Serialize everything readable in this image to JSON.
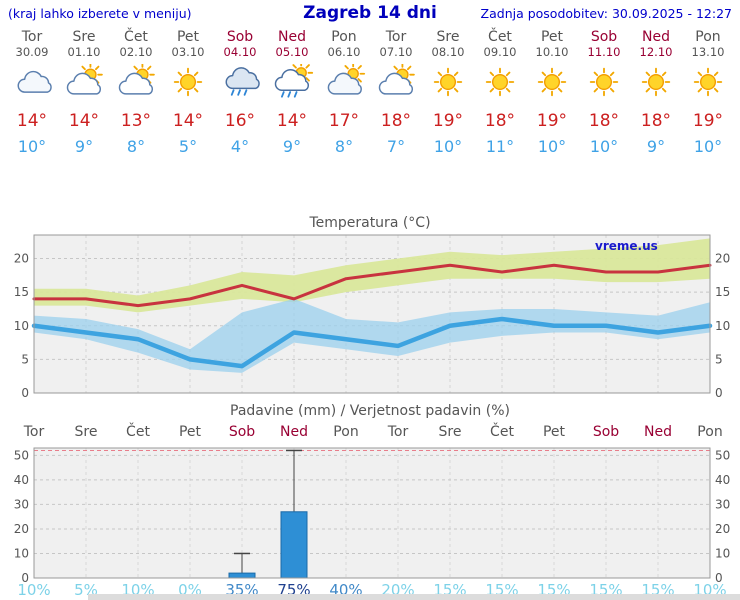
{
  "header": {
    "hint": "(kraj lahko izberete v meniju)",
    "title": "Zagreb 14 dni",
    "updated": "Zadnja posodobitev: 30.09.2025 - 12:27"
  },
  "colors": {
    "accent_blue": "#0000cc",
    "weekend": "#990033",
    "day_gray": "#555555",
    "tmax_red": "#cc2020",
    "tmin_blue": "#3fa2e6",
    "bar_blue": "#2e8fd5",
    "prob_light": "#7dd2e8",
    "prob_medium": "#4189c8",
    "prob_dark": "#20418f"
  },
  "days": [
    {
      "name": "Tor",
      "date": "30.09",
      "weekend": false,
      "icon": "cloud",
      "tmax": "14°",
      "tmin": "10°",
      "prob": "10%"
    },
    {
      "name": "Sre",
      "date": "01.10",
      "weekend": false,
      "icon": "sun-cloud",
      "tmax": "14°",
      "tmin": "9°",
      "prob": "5%"
    },
    {
      "name": "Čet",
      "date": "02.10",
      "weekend": false,
      "icon": "sun-cloud",
      "tmax": "13°",
      "tmin": "8°",
      "prob": "10%"
    },
    {
      "name": "Pet",
      "date": "03.10",
      "weekend": false,
      "icon": "sun",
      "tmax": "14°",
      "tmin": "5°",
      "prob": "0%"
    },
    {
      "name": "Sob",
      "date": "04.10",
      "weekend": true,
      "icon": "rain",
      "tmax": "16°",
      "tmin": "4°",
      "prob": "35%"
    },
    {
      "name": "Ned",
      "date": "05.10",
      "weekend": true,
      "icon": "sun-rain",
      "tmax": "14°",
      "tmin": "9°",
      "prob": "75%"
    },
    {
      "name": "Pon",
      "date": "06.10",
      "weekend": false,
      "icon": "cloud-sun",
      "tmax": "17°",
      "tmin": "8°",
      "prob": "40%"
    },
    {
      "name": "Tor",
      "date": "07.10",
      "weekend": false,
      "icon": "sun-cloud",
      "tmax": "18°",
      "tmin": "7°",
      "prob": "20%"
    },
    {
      "name": "Sre",
      "date": "08.10",
      "weekend": false,
      "icon": "sun",
      "tmax": "19°",
      "tmin": "10°",
      "prob": "15%"
    },
    {
      "name": "Čet",
      "date": "09.10",
      "weekend": false,
      "icon": "sun",
      "tmax": "18°",
      "tmin": "11°",
      "prob": "15%"
    },
    {
      "name": "Pet",
      "date": "10.10",
      "weekend": false,
      "icon": "sun",
      "tmax": "19°",
      "tmin": "10°",
      "prob": "15%"
    },
    {
      "name": "Sob",
      "date": "11.10",
      "weekend": true,
      "icon": "sun",
      "tmax": "18°",
      "tmin": "10°",
      "prob": "15%"
    },
    {
      "name": "Ned",
      "date": "12.10",
      "weekend": true,
      "icon": "sun",
      "tmax": "18°",
      "tmin": "9°",
      "prob": "15%"
    },
    {
      "name": "Pon",
      "date": "13.10",
      "weekend": false,
      "icon": "sun",
      "tmax": "19°",
      "tmin": "10°",
      "prob": "10%"
    }
  ],
  "chart_data": [
    {
      "type": "line",
      "title": "Temperatura (°C)",
      "watermark": "vreme.us",
      "categories": [
        "Tor",
        "Sre",
        "Čet",
        "Pet",
        "Sob",
        "Ned",
        "Pon",
        "Tor",
        "Sre",
        "Čet",
        "Pet",
        "Sob",
        "Ned",
        "Pon"
      ],
      "ylim": [
        0,
        23.5
      ],
      "yticks": [
        0,
        5,
        10,
        15,
        20
      ],
      "grid": true,
      "legend": "none",
      "series": [
        {
          "name": "tmax",
          "kind": "line",
          "color": "#c8333f",
          "values": [
            14,
            14,
            13,
            14,
            16,
            14,
            17,
            18,
            19,
            18,
            19,
            18,
            18,
            19
          ]
        },
        {
          "name": "tmin",
          "kind": "line",
          "color": "#3da3e0",
          "values": [
            10,
            9,
            8,
            5,
            4,
            9,
            8,
            7,
            10,
            11,
            10,
            10,
            9,
            10
          ]
        },
        {
          "name": "tmax_range",
          "kind": "band",
          "color": "#d9e79b",
          "upper": [
            15.5,
            15.5,
            14.5,
            16,
            18,
            17.5,
            19,
            20,
            21,
            20.5,
            21,
            21.5,
            22,
            23
          ],
          "lower": [
            13,
            13,
            12,
            13,
            14,
            13.5,
            15,
            16,
            17,
            17,
            17,
            16.5,
            16.5,
            17
          ]
        },
        {
          "name": "tmin_range",
          "kind": "band",
          "color": "#9bd0ed",
          "upper": [
            11.5,
            11,
            9.5,
            6.5,
            12,
            14,
            11,
            10.5,
            12,
            12.5,
            12.5,
            12,
            11.5,
            13.5
          ],
          "lower": [
            9,
            8,
            6,
            3.5,
            3,
            7.5,
            6.5,
            5.5,
            7.5,
            8.5,
            9,
            9,
            8,
            9
          ]
        }
      ]
    },
    {
      "type": "bar",
      "title": "Padavine (mm) / Verjetnost padavin (%)",
      "categories": [
        "Tor",
        "Sre",
        "Čet",
        "Pet",
        "Sob",
        "Ned",
        "Pon",
        "Tor",
        "Sre",
        "Čet",
        "Pet",
        "Sob",
        "Ned",
        "Pon"
      ],
      "ylim": [
        0,
        53
      ],
      "yticks": [
        0,
        10,
        20,
        30,
        40,
        50
      ],
      "bar_color": "#2e8fd5",
      "values_mm": [
        0,
        0,
        0,
        0,
        2,
        27,
        0,
        0,
        0,
        0,
        0,
        0,
        0,
        0
      ],
      "whisker_mm": [
        0,
        0,
        0,
        0,
        10,
        52,
        0,
        0,
        0,
        0,
        0,
        0,
        0,
        0
      ],
      "probabilities_pct": [
        10,
        5,
        10,
        0,
        35,
        75,
        40,
        20,
        15,
        15,
        15,
        15,
        15,
        10
      ]
    }
  ]
}
